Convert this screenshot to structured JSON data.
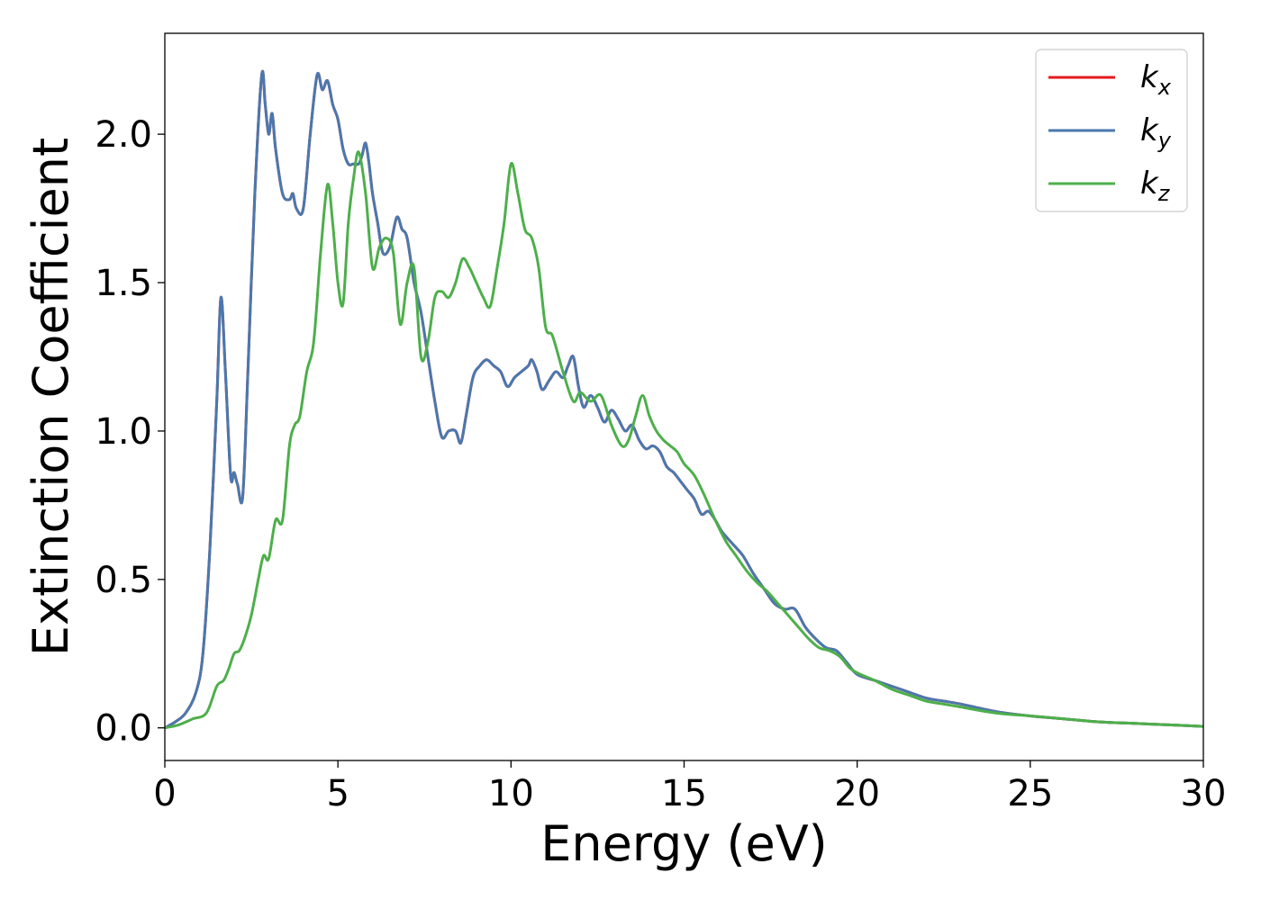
{
  "chart_data": {
    "type": "line",
    "xlabel": "Energy (eV)",
    "ylabel": "Extinction Coefficient",
    "xlim": [
      0,
      30
    ],
    "ylim": [
      -0.11,
      2.34
    ],
    "xticks": [
      0,
      5,
      10,
      15,
      20,
      25,
      30
    ],
    "xtick_labels": [
      "0",
      "5",
      "10",
      "15",
      "20",
      "25",
      "30"
    ],
    "yticks": [
      0.0,
      0.5,
      1.0,
      1.5,
      2.0
    ],
    "ytick_labels": [
      "0.0",
      "0.5",
      "1.0",
      "1.5",
      "2.0"
    ],
    "grid": false,
    "legend_position": "top-right",
    "series": [
      {
        "name": "k_x",
        "label_base": "k",
        "label_sub": "x",
        "color": "#e41a1c",
        "x": [
          0,
          0.3,
          0.6,
          0.9,
          1.1,
          1.3,
          1.5,
          1.62,
          1.75,
          1.9,
          2.0,
          2.1,
          2.25,
          2.4,
          2.6,
          2.8,
          2.9,
          3.0,
          3.1,
          3.2,
          3.4,
          3.6,
          3.7,
          3.8,
          4.0,
          4.2,
          4.4,
          4.55,
          4.7,
          4.85,
          5.0,
          5.15,
          5.3,
          5.45,
          5.6,
          5.7,
          5.8,
          5.9,
          6.0,
          6.15,
          6.3,
          6.5,
          6.7,
          6.85,
          7.0,
          7.2,
          7.4,
          7.6,
          7.8,
          8.0,
          8.2,
          8.4,
          8.55,
          8.7,
          8.9,
          9.1,
          9.3,
          9.5,
          9.7,
          9.9,
          10.1,
          10.3,
          10.5,
          10.6,
          10.75,
          10.9,
          11.1,
          11.3,
          11.5,
          11.65,
          11.8,
          11.95,
          12.1,
          12.3,
          12.5,
          12.7,
          12.9,
          13.1,
          13.3,
          13.5,
          13.7,
          13.9,
          14.1,
          14.3,
          14.5,
          14.7,
          14.9,
          15.1,
          15.3,
          15.5,
          15.7,
          15.9,
          16.1,
          16.4,
          16.7,
          17.0,
          17.3,
          17.6,
          17.9,
          18.2,
          18.5,
          18.8,
          19.1,
          19.4,
          19.7,
          20.0,
          20.5,
          21.0,
          21.5,
          22.0,
          22.5,
          23.0,
          24.0,
          25.0,
          26.0,
          27.0,
          28.0,
          29.0,
          30.0
        ],
        "values": [
          0.0,
          0.02,
          0.05,
          0.12,
          0.25,
          0.6,
          1.1,
          1.45,
          1.2,
          0.85,
          0.86,
          0.82,
          0.78,
          1.2,
          1.8,
          2.2,
          2.1,
          2.0,
          2.07,
          1.95,
          1.8,
          1.78,
          1.8,
          1.75,
          1.75,
          2.0,
          2.2,
          2.15,
          2.18,
          2.1,
          2.05,
          1.95,
          1.9,
          1.9,
          1.9,
          1.93,
          1.97,
          1.9,
          1.8,
          1.7,
          1.6,
          1.62,
          1.72,
          1.68,
          1.65,
          1.5,
          1.4,
          1.25,
          1.1,
          0.98,
          1.0,
          1.0,
          0.96,
          1.05,
          1.18,
          1.22,
          1.24,
          1.22,
          1.2,
          1.15,
          1.18,
          1.2,
          1.22,
          1.24,
          1.2,
          1.14,
          1.17,
          1.2,
          1.18,
          1.22,
          1.25,
          1.15,
          1.08,
          1.12,
          1.08,
          1.03,
          1.07,
          1.04,
          1.0,
          1.02,
          0.97,
          0.94,
          0.95,
          0.93,
          0.88,
          0.86,
          0.83,
          0.8,
          0.77,
          0.72,
          0.73,
          0.7,
          0.66,
          0.62,
          0.58,
          0.52,
          0.47,
          0.42,
          0.4,
          0.4,
          0.34,
          0.3,
          0.27,
          0.26,
          0.22,
          0.18,
          0.16,
          0.14,
          0.12,
          0.1,
          0.09,
          0.08,
          0.055,
          0.04,
          0.03,
          0.02,
          0.015,
          0.01,
          0.005
        ]
      },
      {
        "name": "k_y",
        "label_base": "k",
        "label_sub": "y",
        "color": "#4a78ae",
        "x": [
          0,
          0.3,
          0.6,
          0.9,
          1.1,
          1.3,
          1.5,
          1.62,
          1.75,
          1.9,
          2.0,
          2.1,
          2.25,
          2.4,
          2.6,
          2.8,
          2.9,
          3.0,
          3.1,
          3.2,
          3.4,
          3.6,
          3.7,
          3.8,
          4.0,
          4.2,
          4.4,
          4.55,
          4.7,
          4.85,
          5.0,
          5.15,
          5.3,
          5.45,
          5.6,
          5.7,
          5.8,
          5.9,
          6.0,
          6.15,
          6.3,
          6.5,
          6.7,
          6.85,
          7.0,
          7.2,
          7.4,
          7.6,
          7.8,
          8.0,
          8.2,
          8.4,
          8.55,
          8.7,
          8.9,
          9.1,
          9.3,
          9.5,
          9.7,
          9.9,
          10.1,
          10.3,
          10.5,
          10.6,
          10.75,
          10.9,
          11.1,
          11.3,
          11.5,
          11.65,
          11.8,
          11.95,
          12.1,
          12.3,
          12.5,
          12.7,
          12.9,
          13.1,
          13.3,
          13.5,
          13.7,
          13.9,
          14.1,
          14.3,
          14.5,
          14.7,
          14.9,
          15.1,
          15.3,
          15.5,
          15.7,
          15.9,
          16.1,
          16.4,
          16.7,
          17.0,
          17.3,
          17.6,
          17.9,
          18.2,
          18.5,
          18.8,
          19.1,
          19.4,
          19.7,
          20.0,
          20.5,
          21.0,
          21.5,
          22.0,
          22.5,
          23.0,
          24.0,
          25.0,
          26.0,
          27.0,
          28.0,
          29.0,
          30.0
        ],
        "values": [
          0.0,
          0.02,
          0.05,
          0.12,
          0.25,
          0.6,
          1.1,
          1.45,
          1.2,
          0.85,
          0.86,
          0.82,
          0.78,
          1.2,
          1.8,
          2.2,
          2.1,
          2.0,
          2.07,
          1.95,
          1.8,
          1.78,
          1.8,
          1.75,
          1.75,
          2.0,
          2.2,
          2.15,
          2.18,
          2.1,
          2.05,
          1.95,
          1.9,
          1.9,
          1.9,
          1.93,
          1.97,
          1.9,
          1.8,
          1.7,
          1.6,
          1.62,
          1.72,
          1.68,
          1.65,
          1.5,
          1.4,
          1.25,
          1.1,
          0.98,
          1.0,
          1.0,
          0.96,
          1.05,
          1.18,
          1.22,
          1.24,
          1.22,
          1.2,
          1.15,
          1.18,
          1.2,
          1.22,
          1.24,
          1.2,
          1.14,
          1.17,
          1.2,
          1.18,
          1.22,
          1.25,
          1.15,
          1.08,
          1.12,
          1.08,
          1.03,
          1.07,
          1.04,
          1.0,
          1.02,
          0.97,
          0.94,
          0.95,
          0.93,
          0.88,
          0.86,
          0.83,
          0.8,
          0.77,
          0.72,
          0.73,
          0.7,
          0.66,
          0.62,
          0.58,
          0.52,
          0.47,
          0.42,
          0.4,
          0.4,
          0.34,
          0.3,
          0.27,
          0.26,
          0.22,
          0.18,
          0.16,
          0.14,
          0.12,
          0.1,
          0.09,
          0.08,
          0.055,
          0.04,
          0.03,
          0.02,
          0.015,
          0.01,
          0.005
        ]
      },
      {
        "name": "k_z",
        "label_base": "k",
        "label_sub": "z",
        "color": "#4daf4a",
        "x": [
          0,
          0.4,
          0.8,
          1.2,
          1.5,
          1.7,
          1.85,
          2.0,
          2.15,
          2.3,
          2.5,
          2.7,
          2.85,
          3.0,
          3.2,
          3.4,
          3.6,
          3.75,
          3.9,
          4.1,
          4.3,
          4.5,
          4.7,
          4.85,
          5.0,
          5.15,
          5.3,
          5.45,
          5.6,
          5.8,
          6.0,
          6.2,
          6.4,
          6.6,
          6.8,
          7.0,
          7.2,
          7.4,
          7.6,
          7.8,
          8.0,
          8.2,
          8.4,
          8.6,
          8.8,
          9.0,
          9.2,
          9.4,
          9.6,
          9.8,
          10.0,
          10.2,
          10.4,
          10.6,
          10.8,
          11.0,
          11.2,
          11.5,
          11.8,
          12.0,
          12.3,
          12.6,
          12.9,
          13.2,
          13.4,
          13.6,
          13.8,
          14.0,
          14.2,
          14.4,
          14.6,
          14.8,
          15.0,
          15.3,
          15.6,
          15.9,
          16.2,
          16.5,
          16.8,
          17.1,
          17.4,
          17.7,
          18.0,
          18.3,
          18.6,
          18.9,
          19.2,
          19.5,
          19.8,
          20.1,
          20.5,
          21.0,
          21.5,
          22.0,
          22.5,
          23.0,
          24.0,
          25.0,
          26.0,
          27.0,
          28.0,
          29.0,
          30.0
        ],
        "values": [
          0.0,
          0.01,
          0.03,
          0.05,
          0.14,
          0.16,
          0.2,
          0.25,
          0.26,
          0.3,
          0.38,
          0.5,
          0.58,
          0.57,
          0.7,
          0.7,
          0.95,
          1.02,
          1.05,
          1.2,
          1.3,
          1.6,
          1.83,
          1.7,
          1.5,
          1.43,
          1.7,
          1.85,
          1.94,
          1.8,
          1.55,
          1.62,
          1.65,
          1.6,
          1.36,
          1.5,
          1.55,
          1.25,
          1.3,
          1.45,
          1.47,
          1.45,
          1.5,
          1.58,
          1.55,
          1.5,
          1.45,
          1.42,
          1.55,
          1.7,
          1.9,
          1.8,
          1.68,
          1.65,
          1.55,
          1.35,
          1.32,
          1.2,
          1.1,
          1.13,
          1.1,
          1.12,
          1.02,
          0.95,
          0.97,
          1.05,
          1.12,
          1.05,
          1.0,
          0.97,
          0.95,
          0.93,
          0.89,
          0.85,
          0.78,
          0.7,
          0.63,
          0.58,
          0.53,
          0.49,
          0.46,
          0.42,
          0.38,
          0.34,
          0.3,
          0.27,
          0.26,
          0.24,
          0.2,
          0.18,
          0.16,
          0.13,
          0.11,
          0.09,
          0.08,
          0.07,
          0.05,
          0.04,
          0.03,
          0.02,
          0.015,
          0.01,
          0.005
        ]
      }
    ]
  }
}
